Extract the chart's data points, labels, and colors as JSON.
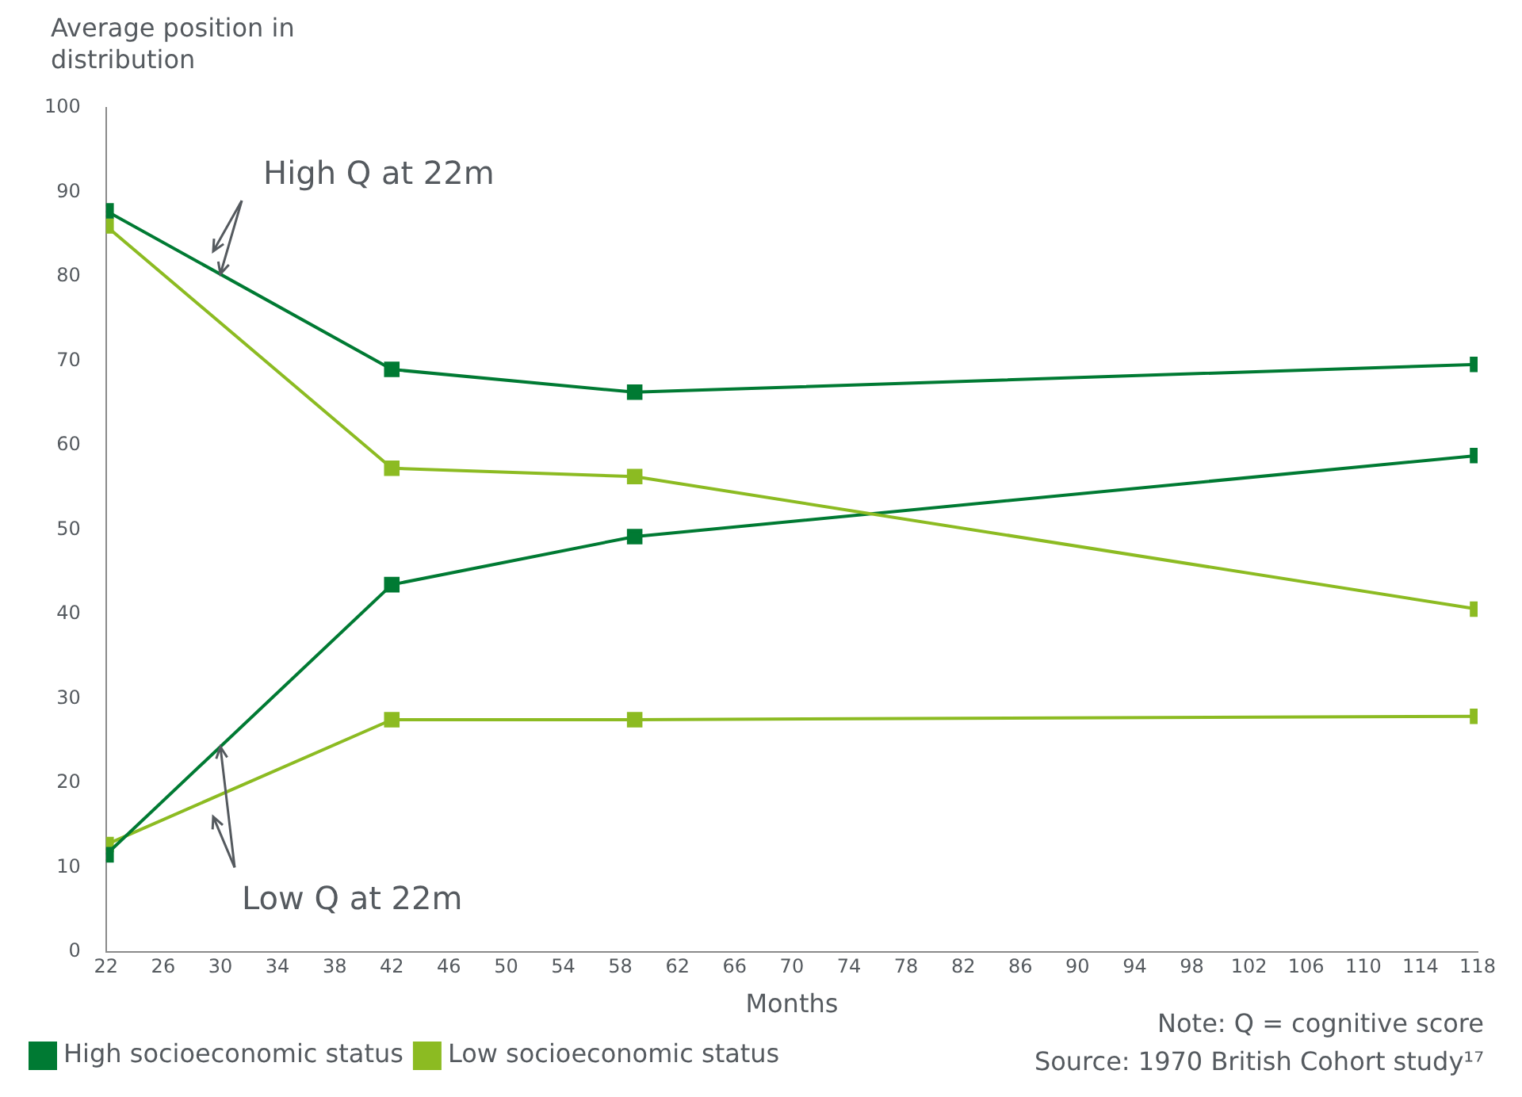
{
  "chart_data": {
    "type": "line",
    "ylabel": "Average position in distribution",
    "xlabel": "Months",
    "x": [
      22,
      42,
      59,
      118
    ],
    "series": [
      {
        "name": "High socioeconomic status",
        "color": "#007a33",
        "values": [
          87.8,
          69.0,
          66.3,
          69.6
        ]
      },
      {
        "name": "Low socioeconomic status",
        "color": "#8cbb22",
        "values": [
          86.0,
          57.3,
          56.3,
          40.6
        ]
      },
      {
        "color": "#007a33",
        "values": [
          11.5,
          43.5,
          49.2,
          58.8
        ]
      },
      {
        "color": "#8cbb22",
        "values": [
          12.7,
          27.5,
          27.5,
          27.9
        ]
      }
    ],
    "xlim": [
      22,
      118
    ],
    "xticks": [
      22,
      26,
      30,
      34,
      38,
      42,
      46,
      50,
      54,
      58,
      62,
      66,
      70,
      74,
      78,
      82,
      86,
      90,
      94,
      98,
      102,
      106,
      110,
      114,
      118
    ],
    "ylim": [
      0,
      100
    ],
    "yticks": [
      0,
      10,
      20,
      30,
      40,
      50,
      60,
      70,
      80,
      90,
      100
    ],
    "grid": false,
    "legend": "bottom left",
    "marker": "square",
    "line_style": "solid",
    "annotations": [
      {
        "text": "High Q at 22m",
        "x": 30,
        "y": 80.3
      },
      {
        "text": "Low Q at 22m",
        "x": 30,
        "y": 24.3
      },
      "Note: Q = cognitive score",
      "Source: 1970 British Cohort study¹⁷"
    ]
  }
}
